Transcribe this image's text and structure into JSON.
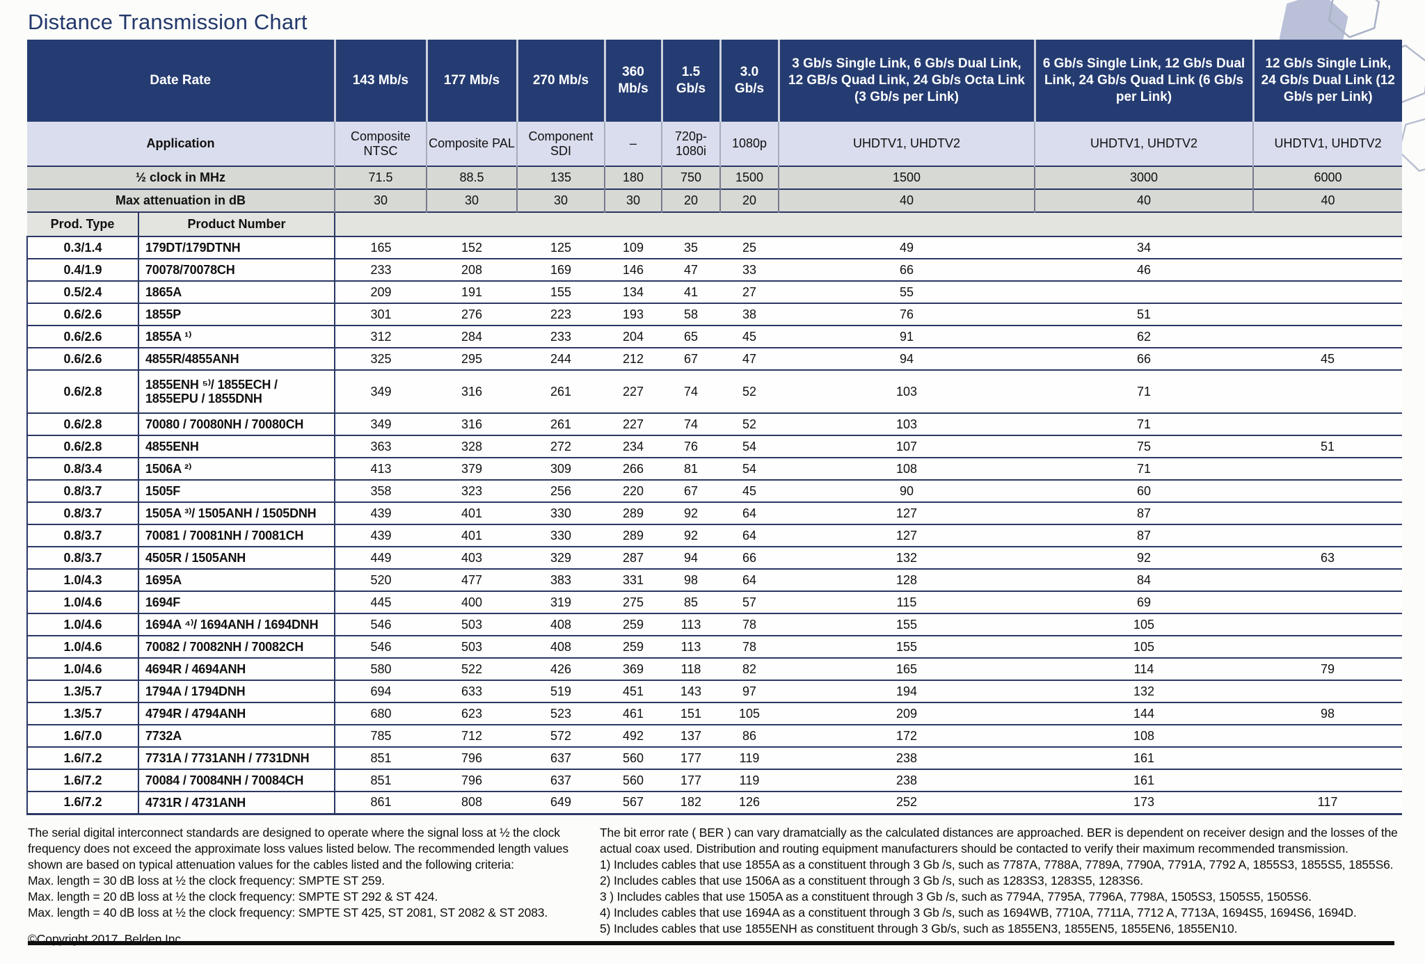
{
  "title": "Distance Transmission Chart",
  "colors": {
    "header-navy": "#253c72",
    "title-navy": "#22386b",
    "app-row-bg": "#dadded",
    "gray-row-bg": "#d7d9d5",
    "prod-row-bg": "#e3e4e0",
    "line-navy": "#2b3763",
    "hex-fill": "#b5bdd6",
    "hex-stroke": "#a9b1c7"
  },
  "table": {
    "header": {
      "date_rate_label": "Date Rate",
      "application_label": "Application",
      "clock_label": "½ clock in MHz",
      "attenuation_label": "Max attenuation in dB",
      "prod_type_label": "Prod. Type",
      "product_number_label": "Product Number",
      "rate_columns": [
        "143 Mb/s",
        "177 Mb/s",
        "270 Mb/s",
        "360 Mb/s",
        "1.5 Gb/s",
        "3.0 Gb/s",
        "3 Gb/s Single Link, 6 Gb/s Dual Link, 12 GB/s Quad Link, 24 Gb/s Octa Link (3 Gb/s per Link)",
        "6 Gb/s Single Link, 12 Gb/s Dual Link, 24 Gb/s Quad Link (6 Gb/s per Link)",
        "12 Gb/s Single Link, 24 Gb/s Dual Link (12 Gb/s per Link)"
      ],
      "applications": [
        "Composite NTSC",
        "Composite PAL",
        "Component SDI",
        "–",
        "720p- 1080i",
        "1080p",
        "UHDTV1, UHDTV2",
        "UHDTV1, UHDTV2",
        "UHDTV1, UHDTV2"
      ],
      "clock_values": [
        "71.5",
        "88.5",
        "135",
        "180",
        "750",
        "1500",
        "1500",
        "3000",
        "6000"
      ],
      "attenuation_values": [
        "30",
        "30",
        "30",
        "30",
        "20",
        "20",
        "40",
        "40",
        "40"
      ]
    },
    "rows": [
      {
        "type": "0.3/1.4",
        "product": "179DT/179DTNH",
        "values": [
          "165",
          "152",
          "125",
          "109",
          "35",
          "25",
          "49",
          "34",
          ""
        ]
      },
      {
        "type": "0.4/1.9",
        "product": "70078/70078CH",
        "values": [
          "233",
          "208",
          "169",
          "146",
          "47",
          "33",
          "66",
          "46",
          ""
        ]
      },
      {
        "type": "0.5/2.4",
        "product": "1865A",
        "values": [
          "209",
          "191",
          "155",
          "134",
          "41",
          "27",
          "55",
          "",
          ""
        ]
      },
      {
        "type": "0.6/2.6",
        "product": "1855P",
        "values": [
          "301",
          "276",
          "223",
          "193",
          "58",
          "38",
          "76",
          "51",
          ""
        ]
      },
      {
        "type": "0.6/2.6",
        "product": "1855A ¹⁾",
        "values": [
          "312",
          "284",
          "233",
          "204",
          "65",
          "45",
          "91",
          "62",
          ""
        ]
      },
      {
        "type": "0.6/2.6",
        "product": "4855R/4855ANH",
        "values": [
          "325",
          "295",
          "244",
          "212",
          "67",
          "47",
          "94",
          "66",
          "45"
        ]
      },
      {
        "type": "0.6/2.8",
        "product": "1855ENH ⁵⁾/ 1855ECH /\n1855EPU / 1855DNH",
        "tall": true,
        "values": [
          "349",
          "316",
          "261",
          "227",
          "74",
          "52",
          "103",
          "71",
          ""
        ]
      },
      {
        "type": "0.6/2.8",
        "product": "70080 / 70080NH / 70080CH",
        "values": [
          "349",
          "316",
          "261",
          "227",
          "74",
          "52",
          "103",
          "71",
          ""
        ]
      },
      {
        "type": "0.6/2.8",
        "product": "4855ENH",
        "values": [
          "363",
          "328",
          "272",
          "234",
          "76",
          "54",
          "107",
          "75",
          "51"
        ]
      },
      {
        "type": "0.8/3.4",
        "product": "1506A ²⁾",
        "values": [
          "413",
          "379",
          "309",
          "266",
          "81",
          "54",
          "108",
          "71",
          ""
        ]
      },
      {
        "type": "0.8/3.7",
        "product": "1505F",
        "values": [
          "358",
          "323",
          "256",
          "220",
          "67",
          "45",
          "90",
          "60",
          ""
        ]
      },
      {
        "type": "0.8/3.7",
        "product": "1505A ³⁾/ 1505ANH / 1505DNH",
        "values": [
          "439",
          "401",
          "330",
          "289",
          "92",
          "64",
          "127",
          "87",
          ""
        ]
      },
      {
        "type": "0.8/3.7",
        "product": "70081 / 70081NH / 70081CH",
        "values": [
          "439",
          "401",
          "330",
          "289",
          "92",
          "64",
          "127",
          "87",
          ""
        ]
      },
      {
        "type": "0.8/3.7",
        "product": "4505R / 1505ANH",
        "values": [
          "449",
          "403",
          "329",
          "287",
          "94",
          "66",
          "132",
          "92",
          "63"
        ]
      },
      {
        "type": "1.0/4.3",
        "product": "1695A",
        "values": [
          "520",
          "477",
          "383",
          "331",
          "98",
          "64",
          "128",
          "84",
          ""
        ]
      },
      {
        "type": "1.0/4.6",
        "product": "1694F",
        "values": [
          "445",
          "400",
          "319",
          "275",
          "85",
          "57",
          "115",
          "69",
          ""
        ]
      },
      {
        "type": "1.0/4.6",
        "product": "1694A ⁴⁾/ 1694ANH / 1694DNH",
        "values": [
          "546",
          "503",
          "408",
          "259",
          "113",
          "78",
          "155",
          "105",
          ""
        ]
      },
      {
        "type": "1.0/4.6",
        "product": "70082 / 70082NH / 70082CH",
        "values": [
          "546",
          "503",
          "408",
          "259",
          "113",
          "78",
          "155",
          "105",
          ""
        ]
      },
      {
        "type": "1.0/4.6",
        "product": "4694R / 4694ANH",
        "values": [
          "580",
          "522",
          "426",
          "369",
          "118",
          "82",
          "165",
          "114",
          "79"
        ]
      },
      {
        "type": "1.3/5.7",
        "product": "1794A / 1794DNH",
        "values": [
          "694",
          "633",
          "519",
          "451",
          "143",
          "97",
          "194",
          "132",
          ""
        ]
      },
      {
        "type": "1.3/5.7",
        "product": "4794R / 4794ANH",
        "values": [
          "680",
          "623",
          "523",
          "461",
          "151",
          "105",
          "209",
          "144",
          "98"
        ]
      },
      {
        "type": "1.6/7.0",
        "product": "7732A",
        "values": [
          "785",
          "712",
          "572",
          "492",
          "137",
          "86",
          "172",
          "108",
          ""
        ]
      },
      {
        "type": "1.6/7.2",
        "product": "7731A / 7731ANH / 7731DNH",
        "values": [
          "851",
          "796",
          "637",
          "560",
          "177",
          "119",
          "238",
          "161",
          ""
        ]
      },
      {
        "type": "1.6/7.2",
        "product": "70084 / 70084NH / 70084CH",
        "values": [
          "851",
          "796",
          "637",
          "560",
          "177",
          "119",
          "238",
          "161",
          ""
        ]
      },
      {
        "type": "1.6/7.2",
        "product": "4731R / 4731ANH",
        "values": [
          "861",
          "808",
          "649",
          "567",
          "182",
          "126",
          "252",
          "173",
          "117"
        ]
      }
    ]
  },
  "footnotes": {
    "left": {
      "paragraph": "The serial digital interconnect standards are designed to operate where the signal loss at ½ the clock frequency does not exceed the approximate loss values listed below. The recommended length values shown are based on typical attenuation values for the cables listed and the following criteria:",
      "criteria": [
        "Max. length = 30 dB loss at ½ the clock frequency: SMPTE ST 259.",
        "Max. length = 20 dB loss at ½ the clock frequency: SMPTE ST 292 & ST 424.",
        "Max. length = 40 dB loss at ½ the clock frequency: SMPTE ST 425, ST 2081, ST 2082 & ST 2083."
      ],
      "copyright": "©Copyright 2017, Belden Inc."
    },
    "right": {
      "paragraph": "The bit error rate ( BER ) can vary dramatcially as the calculated distances are approached. BER is dependent on receiver design and the losses of the actual coax used. Distribution and routing equipment manufacturers should be contacted to verify their maximum recommended transmission.",
      "notes": [
        "1) Includes cables that use 1855A as a constituent through 3 Gb /s, such as 7787A, 7788A, 7789A, 7790A, 7791A, 7792 A, 1855S3, 1855S5, 1855S6.",
        "2) Includes cables that use 1506A as a constituent through 3 Gb /s, such as 1283S3, 1283S5, 1283S6.",
        "3 ) Includes cables that use 1505A as a constituent through 3 Gb /s, such as 7794A, 7795A, 7796A, 7798A, 1505S3, 1505S5, 1505S6.",
        "4) Includes cables that use 1694A as a constituent through 3 Gb /s, such as 1694WB, 7710A, 7711A, 7712 A, 7713A, 1694S5, 1694S6, 1694D.",
        "5) Includes cables that use 1855ENH as constituent through 3 Gb/s, such as 1855EN3, 1855EN5, 1855EN6, 1855EN10."
      ]
    }
  }
}
